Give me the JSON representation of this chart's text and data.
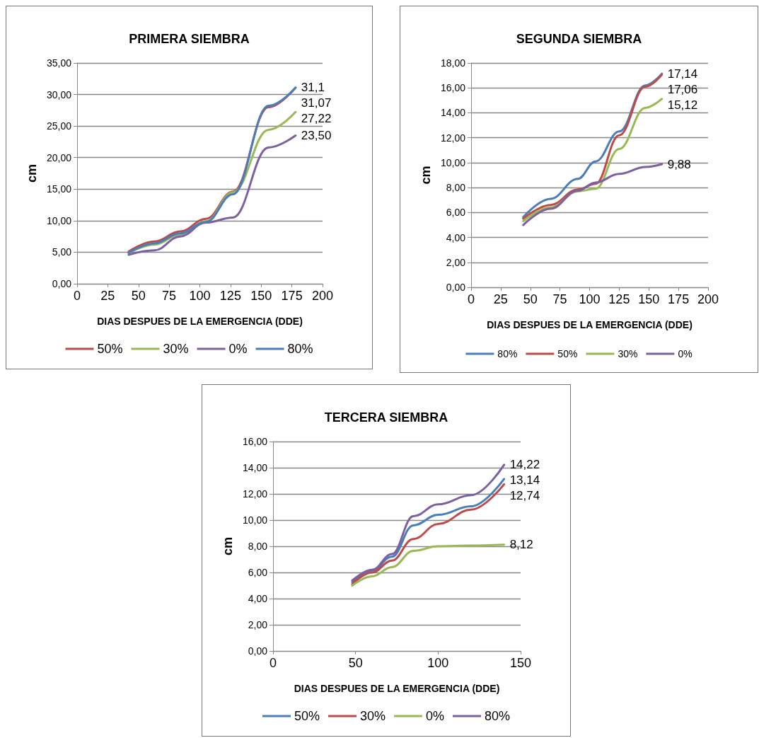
{
  "chart_data": [
    {
      "type": "line",
      "title": "PRIMERA SIEMBRA",
      "xlabel": "DIAS DESPUES DE LA EMERGENCIA (DDE)",
      "ylabel": "cm",
      "x": [
        42,
        63,
        84,
        105,
        127,
        156,
        178
      ],
      "series": [
        {
          "name": "50%",
          "color": "#be4b48",
          "values": [
            5.1,
            6.7,
            8.3,
            10.3,
            14.6,
            28.0,
            31.1
          ],
          "value_labels": [
            null,
            null,
            null,
            null,
            null,
            null,
            "31,1"
          ]
        },
        {
          "name": "30%",
          "color": "#98b954",
          "values": [
            4.9,
            6.2,
            7.8,
            9.9,
            14.5,
            24.4,
            27.22
          ],
          "value_labels": [
            null,
            null,
            null,
            null,
            null,
            null,
            "27,22"
          ]
        },
        {
          "name": "0%",
          "color": "#7d60a0",
          "values": [
            4.6,
            5.3,
            7.5,
            9.7,
            10.5,
            21.6,
            23.5
          ],
          "value_labels": [
            null,
            null,
            null,
            null,
            null,
            null,
            "23,50"
          ]
        },
        {
          "name": "80%",
          "color": "#4a7ebb",
          "values": [
            4.9,
            6.4,
            8.0,
            9.8,
            14.2,
            28.2,
            31.07
          ],
          "value_labels": [
            null,
            null,
            null,
            null,
            null,
            null,
            "31,07"
          ]
        }
      ],
      "xlim": [
        0,
        200
      ],
      "xticks": [
        0,
        25,
        50,
        75,
        100,
        125,
        150,
        175,
        200
      ],
      "ylim": [
        0,
        35
      ],
      "yticks": [
        {
          "value": 0,
          "label": "0,00"
        },
        {
          "value": 5,
          "label": "5,00"
        },
        {
          "value": 10,
          "label": "10,00"
        },
        {
          "value": 15,
          "label": "15,00"
        },
        {
          "value": 20,
          "label": "20,00"
        },
        {
          "value": 25,
          "label": "25,00"
        },
        {
          "value": 30,
          "label": "30,00"
        },
        {
          "value": 35,
          "label": "35,00"
        }
      ],
      "grid": "y",
      "legend": "bottom",
      "marker": "none",
      "line_style": "solid"
    },
    {
      "type": "line",
      "title": "SEGUNDA SIEMBRA",
      "xlabel": "DIAS DESPUES DE LA EMERGENCIA (DDE)",
      "ylabel": "cm",
      "x": [
        44,
        67,
        90,
        105,
        125,
        147,
        161
      ],
      "series": [
        {
          "name": "80%",
          "color": "#4a7ebb",
          "values": [
            5.63,
            7.1,
            8.7,
            10.1,
            12.5,
            16.2,
            17.14
          ],
          "value_labels": [
            null,
            null,
            null,
            null,
            null,
            null,
            "17,14"
          ]
        },
        {
          "name": "50%",
          "color": "#be4b48",
          "values": [
            5.5,
            6.6,
            7.85,
            8.3,
            12.2,
            16.1,
            17.06
          ],
          "value_labels": [
            null,
            null,
            null,
            null,
            null,
            null,
            "17,06"
          ]
        },
        {
          "name": "30%",
          "color": "#98b954",
          "values": [
            5.3,
            6.4,
            7.7,
            7.9,
            11.1,
            14.4,
            15.12
          ],
          "value_labels": [
            null,
            null,
            null,
            null,
            null,
            null,
            "15,12"
          ]
        },
        {
          "name": "0%",
          "color": "#7d60a0",
          "values": [
            5.0,
            6.3,
            7.75,
            8.4,
            9.1,
            9.65,
            9.88
          ],
          "value_labels": [
            null,
            null,
            null,
            null,
            null,
            null,
            "9,88"
          ]
        }
      ],
      "xlim": [
        0,
        200
      ],
      "xticks": [
        0,
        25,
        50,
        75,
        100,
        125,
        150,
        175,
        200
      ],
      "ylim": [
        0,
        18
      ],
      "yticks": [
        {
          "value": 0,
          "label": "0,00"
        },
        {
          "value": 2,
          "label": "2,00"
        },
        {
          "value": 4,
          "label": "4,00"
        },
        {
          "value": 6,
          "label": "6,00"
        },
        {
          "value": 8,
          "label": "8,00"
        },
        {
          "value": 10,
          "label": "10,00"
        },
        {
          "value": 12,
          "label": "12,00"
        },
        {
          "value": 14,
          "label": "14,00"
        },
        {
          "value": 16,
          "label": "16,00"
        },
        {
          "value": 18,
          "label": "18,00"
        }
      ],
      "grid": "y",
      "legend": "bottom",
      "marker": "none",
      "line_style": "solid"
    },
    {
      "type": "line",
      "title": "TERCERA SIEMBRA",
      "xlabel": "DIAS DESPUES DE LA EMERGENCIA (DDE)",
      "ylabel": "cm",
      "x": [
        48,
        60,
        72,
        85,
        100,
        120,
        140
      ],
      "series": [
        {
          "name": "50%",
          "color": "#4a7ebb",
          "values": [
            5.26,
            6.15,
            7.2,
            9.6,
            10.4,
            11.05,
            13.14
          ],
          "value_labels": [
            null,
            null,
            null,
            null,
            null,
            null,
            "13,14"
          ]
        },
        {
          "name": "30%",
          "color": "#be4b48",
          "values": [
            5.1,
            6.0,
            6.9,
            8.55,
            9.7,
            10.8,
            12.74
          ],
          "value_labels": [
            null,
            null,
            null,
            null,
            null,
            null,
            "12,74"
          ]
        },
        {
          "name": "0%",
          "color": "#98b954",
          "values": [
            5.0,
            5.7,
            6.4,
            7.65,
            8.0,
            8.05,
            8.12
          ],
          "value_labels": [
            null,
            null,
            null,
            null,
            null,
            null,
            "8,12"
          ]
        },
        {
          "name": "80%",
          "color": "#7d60a0",
          "values": [
            5.38,
            6.2,
            7.4,
            10.3,
            11.2,
            11.9,
            14.22
          ],
          "value_labels": [
            null,
            null,
            null,
            null,
            null,
            null,
            "14,22"
          ]
        }
      ],
      "xlim": [
        0,
        150
      ],
      "xticks": [
        0,
        50,
        100,
        150
      ],
      "ylim": [
        0,
        16
      ],
      "yticks": [
        {
          "value": 0,
          "label": "0,00"
        },
        {
          "value": 2,
          "label": "2,00"
        },
        {
          "value": 4,
          "label": "4,00"
        },
        {
          "value": 6,
          "label": "6,00"
        },
        {
          "value": 8,
          "label": "8,00"
        },
        {
          "value": 10,
          "label": "10,00"
        },
        {
          "value": 12,
          "label": "12,00"
        },
        {
          "value": 14,
          "label": "14,00"
        },
        {
          "value": 16,
          "label": "16,00"
        }
      ],
      "grid": "y",
      "legend": "bottom",
      "marker": "none",
      "line_style": "solid"
    }
  ]
}
